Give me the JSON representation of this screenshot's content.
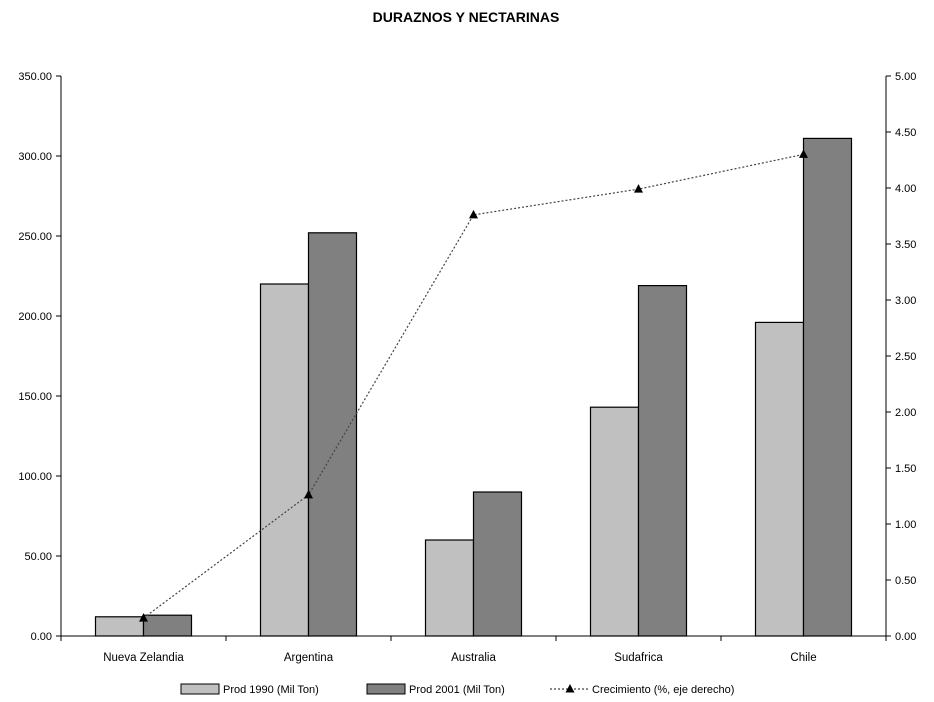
{
  "chart_data": {
    "type": "bar",
    "title": "DURAZNOS Y NECTARINAS",
    "categories": [
      "Nueva Zelandia",
      "Argentina",
      "Australia",
      "Sudafrica",
      "Chile"
    ],
    "series": [
      {
        "name": "Prod 1990 (Mil Ton)",
        "type": "bar",
        "axis": "left",
        "color": "#c0c0c0",
        "values": [
          12,
          220,
          60,
          143,
          196
        ]
      },
      {
        "name": "Prod 2001 (Mil Ton)",
        "type": "bar",
        "axis": "left",
        "color": "#808080",
        "values": [
          13,
          252,
          90,
          219,
          311
        ]
      },
      {
        "name": "Crecimiento (%, eje derecho)",
        "type": "line",
        "axis": "right",
        "color": "#000000",
        "values": [
          0.16,
          1.26,
          3.76,
          3.99,
          4.3
        ]
      }
    ],
    "ylim": [
      0,
      350
    ],
    "y_ticks": [
      "0.00",
      "50.00",
      "100.00",
      "150.00",
      "200.00",
      "250.00",
      "300.00",
      "350.00"
    ],
    "y2lim": [
      0,
      5
    ],
    "y2_ticks": [
      "0.00",
      "0.50",
      "1.00",
      "1.50",
      "2.00",
      "2.50",
      "3.00",
      "3.50",
      "4.00",
      "4.50",
      "5.00"
    ],
    "grid": false,
    "legend_position": "bottom"
  }
}
